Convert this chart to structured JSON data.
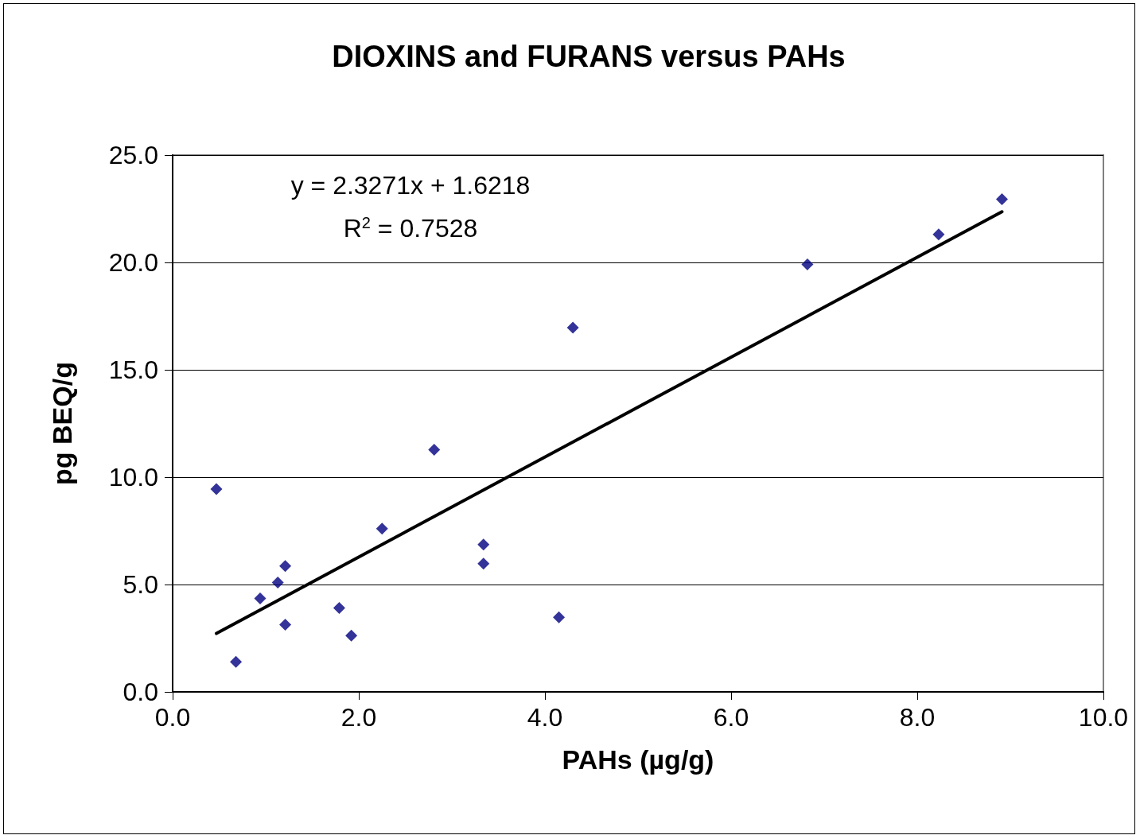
{
  "chart_data": {
    "type": "scatter",
    "title": "DIOXINS and FURANS versus PAHs",
    "xlabel": "PAHs (µg/g)",
    "ylabel": "pg BEQ/g",
    "annotations": [
      "y = 2.3271x + 1.6218",
      "R$^{2}$ = 0.7528"
    ],
    "series": [
      {
        "color": "#000080",
        "marker": "diamond",
        "x": [
          0.47,
          0.68,
          0.94,
          1.13,
          1.21,
          1.21,
          1.79,
          1.92,
          2.25,
          2.81,
          3.34,
          3.34,
          4.15,
          4.3,
          6.82,
          8.23,
          8.91
        ],
        "values": [
          9.44,
          1.4,
          4.35,
          5.09,
          5.86,
          3.13,
          3.91,
          2.62,
          7.6,
          11.28,
          6.86,
          5.97,
          3.47,
          16.96,
          19.91,
          21.31,
          22.94
        ]
      },
      {
        "type": "line",
        "color": "#000000",
        "marker": "none",
        "line_style": "solid",
        "x": [
          0.47,
          8.91
        ],
        "values": [
          2.72,
          22.36
        ]
      }
    ],
    "xlim": [
      0,
      10
    ],
    "xticks": [
      {
        "value": 0,
        "label": "0.0"
      },
      {
        "value": 2,
        "label": "2.0"
      },
      {
        "value": 4,
        "label": "4.0"
      },
      {
        "value": 6,
        "label": "6.0"
      },
      {
        "value": 8,
        "label": "8.0"
      },
      {
        "value": 10,
        "label": "10.0"
      }
    ],
    "ylim": [
      0,
      25
    ],
    "yticks": [
      {
        "value": 0,
        "label": "0.0"
      },
      {
        "value": 5,
        "label": "5.0"
      },
      {
        "value": 10,
        "label": "10.0"
      },
      {
        "value": 15,
        "label": "15.0"
      },
      {
        "value": 20,
        "label": "20.0"
      },
      {
        "value": 25,
        "label": "25.0"
      }
    ],
    "grid": "y"
  }
}
